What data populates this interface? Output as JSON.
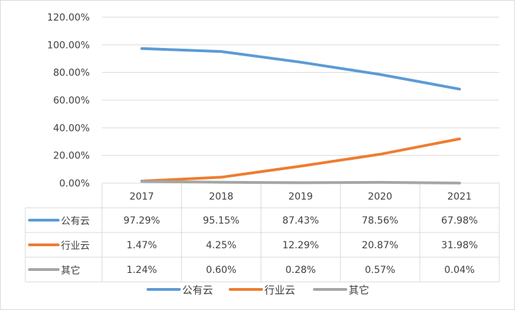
{
  "chart_data": {
    "type": "line",
    "categories": [
      "2017",
      "2018",
      "2019",
      "2020",
      "2021"
    ],
    "y_ticks": [
      "0.00%",
      "20.00%",
      "40.00%",
      "60.00%",
      "80.00%",
      "100.00%",
      "120.00%"
    ],
    "ylim": [
      0,
      120
    ],
    "grid": true,
    "legend_position": "bottom",
    "series": [
      {
        "name": "公有云",
        "color": "#5b9bd5",
        "values": [
          97.29,
          95.15,
          87.43,
          78.56,
          67.98
        ],
        "labels": [
          "97.29%",
          "95.15%",
          "87.43%",
          "78.56%",
          "67.98%"
        ]
      },
      {
        "name": "行业云",
        "color": "#ed7d31",
        "values": [
          1.47,
          4.25,
          12.29,
          20.87,
          31.98
        ],
        "labels": [
          "1.47%",
          "4.25%",
          "12.29%",
          "20.87%",
          "31.98%"
        ]
      },
      {
        "name": "其它",
        "color": "#a5a5a5",
        "values": [
          1.24,
          0.6,
          0.28,
          0.57,
          0.04
        ],
        "labels": [
          "1.24%",
          "0.60%",
          "0.28%",
          "0.57%",
          "0.04%"
        ]
      }
    ]
  }
}
